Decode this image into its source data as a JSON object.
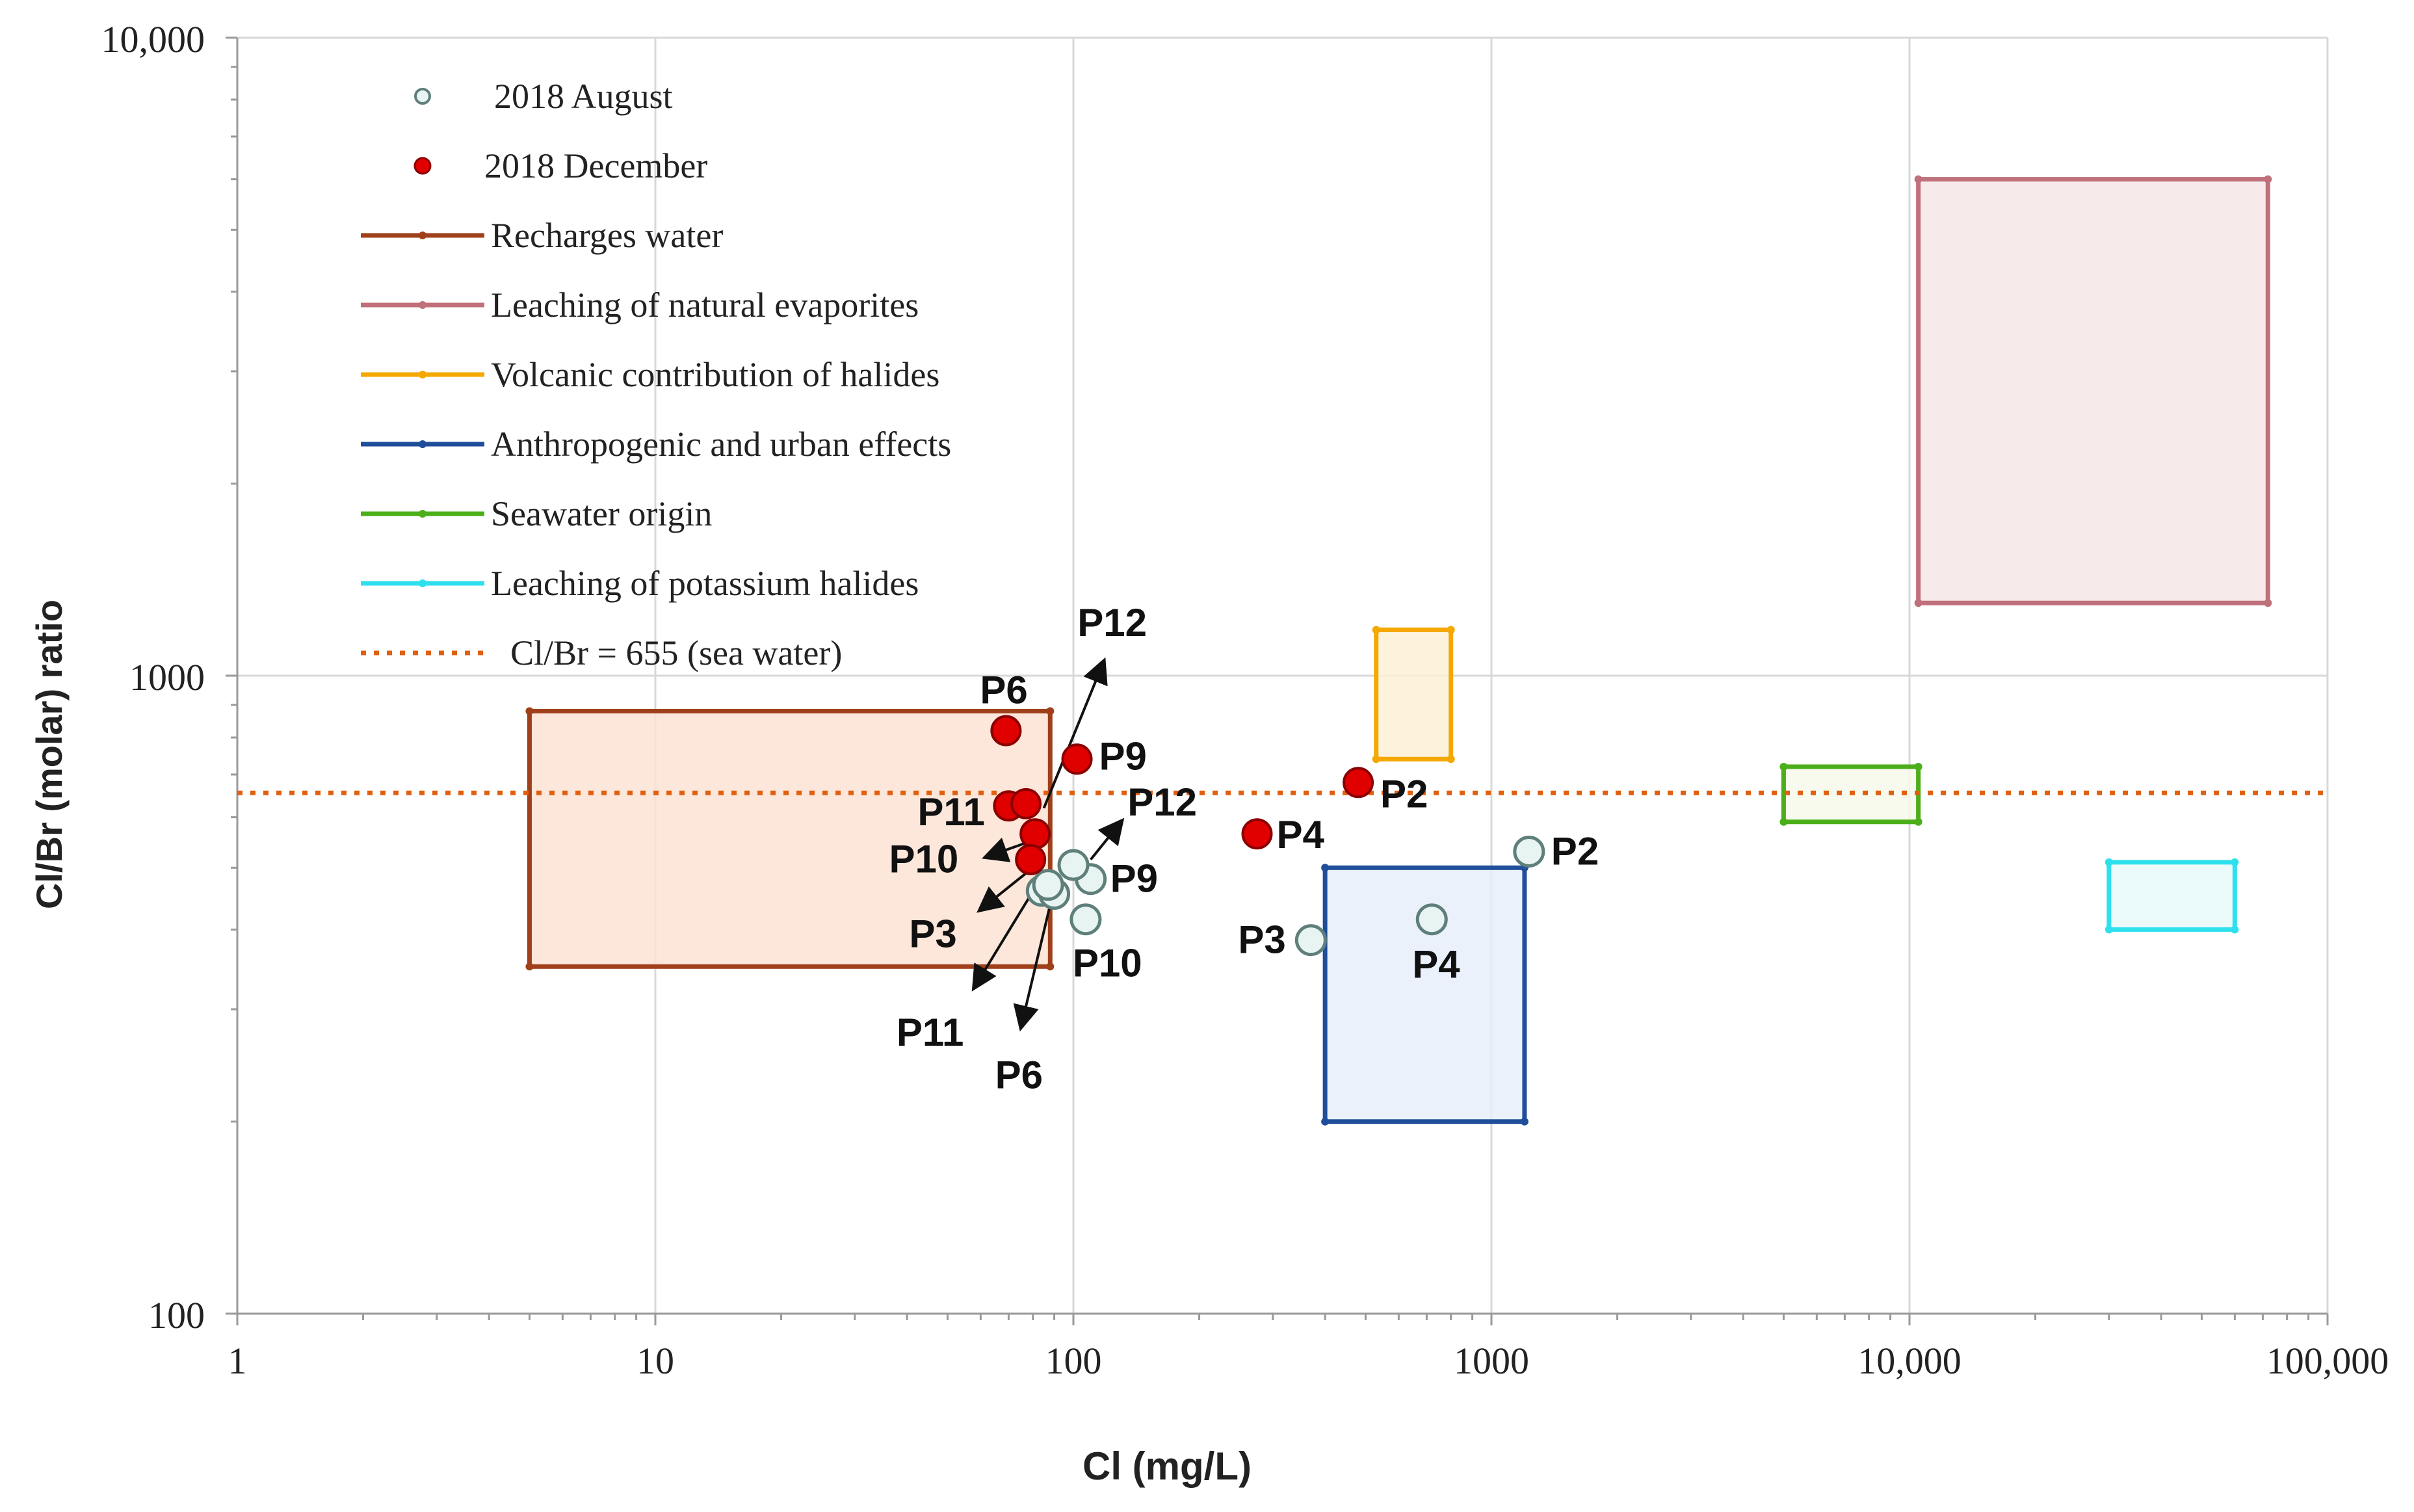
{
  "chart_data": {
    "type": "scatter",
    "title": "",
    "xlabel": "Cl (mg/L)",
    "ylabel": "Cl/Br (molar) ratio",
    "x_scale": "log",
    "y_scale": "log",
    "xlim": [
      1,
      100000
    ],
    "ylim": [
      100,
      10000
    ],
    "grid": true,
    "legend_position": "top-left",
    "x_ticks": [
      1,
      10,
      100,
      1000,
      10000,
      100000
    ],
    "x_tick_labels": [
      "1",
      "10",
      "100",
      "1000",
      "10,000",
      "100,000"
    ],
    "y_ticks": [
      100,
      1000,
      10000
    ],
    "y_tick_labels": [
      "100",
      "1000",
      "10,000"
    ],
    "series": [
      {
        "name": "2018 August",
        "marker": "open-circle",
        "color": "#e8f4f2",
        "edge_color": "#5f7f7b",
        "points": [
          {
            "label": "P2",
            "x": 1230,
            "y": 530
          },
          {
            "label": "P3",
            "x": 370,
            "y": 385
          },
          {
            "label": "P4",
            "x": 720,
            "y": 415
          },
          {
            "label": "P9",
            "x": 110,
            "y": 480
          },
          {
            "label": "P10",
            "x": 107,
            "y": 415
          },
          {
            "label": "P12",
            "x": 100,
            "y": 505
          },
          {
            "label": "P3",
            "x": 84,
            "y": 460
          },
          {
            "label": "P6",
            "x": 90,
            "y": 455
          },
          {
            "label": "P11",
            "x": 87,
            "y": 470
          }
        ]
      },
      {
        "name": "2018 December",
        "marker": "filled-circle",
        "color": "#e00000",
        "edge_color": "#8a0000",
        "points": [
          {
            "label": "P6",
            "x": 69,
            "y": 820
          },
          {
            "label": "P9",
            "x": 102,
            "y": 740
          },
          {
            "label": "P2",
            "x": 480,
            "y": 680
          },
          {
            "label": "P4",
            "x": 275,
            "y": 565
          },
          {
            "label": "P11",
            "x": 70,
            "y": 625
          },
          {
            "label": "P12",
            "x": 77,
            "y": 630
          },
          {
            "label": "P10",
            "x": 81,
            "y": 565
          },
          {
            "label": "P3",
            "x": 79,
            "y": 515
          }
        ]
      }
    ],
    "regions": [
      {
        "name": "Recharges water",
        "color": "#a0401a",
        "fill": "#fbe3d4",
        "x": [
          5,
          88
        ],
        "y": [
          350,
          880
        ]
      },
      {
        "name": "Leaching of natural evaporites",
        "color": "#c0707a",
        "fill": "#f6e6e7",
        "x": [
          10500,
          72000
        ],
        "y": [
          1300,
          6000
        ]
      },
      {
        "name": "Volcanic contribution of halides",
        "color": "#f5a800",
        "fill": "#fdf1d6",
        "x": [
          530,
          800
        ],
        "y": [
          740,
          1180
        ]
      },
      {
        "name": "Anthropogenic and urban effects",
        "color": "#1f4e9a",
        "fill": "#e6eefa",
        "x": [
          400,
          1200
        ],
        "y": [
          200,
          500
        ]
      },
      {
        "name": "Seawater origin",
        "color": "#4caf1a",
        "fill": "#f6f9ea",
        "x": [
          5000,
          10500
        ],
        "y": [
          590,
          720
        ]
      },
      {
        "name": "Leaching of potassium halides",
        "color": "#2ee0ee",
        "fill": "#e8fafc",
        "x": [
          30000,
          60000
        ],
        "y": [
          400,
          510
        ]
      }
    ],
    "reference_lines": [
      {
        "name": "Cl/Br = 655 (sea water)",
        "y": 655,
        "color": "#e06010",
        "style": "dotted"
      }
    ],
    "annotations": [
      {
        "text": "P12",
        "x": 85,
        "y": 620,
        "arrow_to": [
          118,
          1050
        ]
      },
      {
        "text": "P12",
        "x": 110,
        "y": 515,
        "arrow_to": [
          130,
          590
        ]
      },
      {
        "text": "P10",
        "x": 82,
        "y": 555,
        "arrow_to": [
          62,
          520
        ]
      },
      {
        "text": "P3",
        "x": 80,
        "y": 500,
        "arrow_to": [
          60,
          430
        ]
      },
      {
        "text": "P11",
        "x": 85,
        "y": 490,
        "arrow_to": [
          58,
          325
        ]
      },
      {
        "text": "P6",
        "x": 90,
        "y": 465,
        "arrow_to": [
          75,
          282
        ]
      }
    ]
  }
}
